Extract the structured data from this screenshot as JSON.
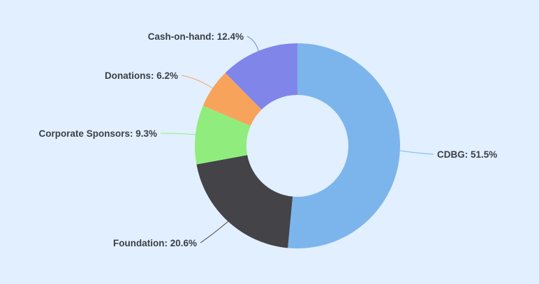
{
  "chart_data": {
    "type": "pie",
    "variant": "donut",
    "legend": "none",
    "slices": [
      {
        "label": "CDBG",
        "value": 51.5,
        "display": "CDBG: 51.5%",
        "color": "#7cb5ec"
      },
      {
        "label": "Foundation",
        "value": 20.6,
        "display": "Foundation: 20.6%",
        "color": "#434348"
      },
      {
        "label": "Corporate Sponsors",
        "value": 9.3,
        "display": "Corporate Sponsors: 9.3%",
        "color": "#90ed7d"
      },
      {
        "label": "Donations",
        "value": 6.2,
        "display": "Donations: 6.2%",
        "color": "#f7a35c"
      },
      {
        "label": "Cash-on-hand",
        "value": 12.4,
        "display": "Cash-on-hand: 12.4%",
        "color": "#8085e9"
      }
    ]
  }
}
